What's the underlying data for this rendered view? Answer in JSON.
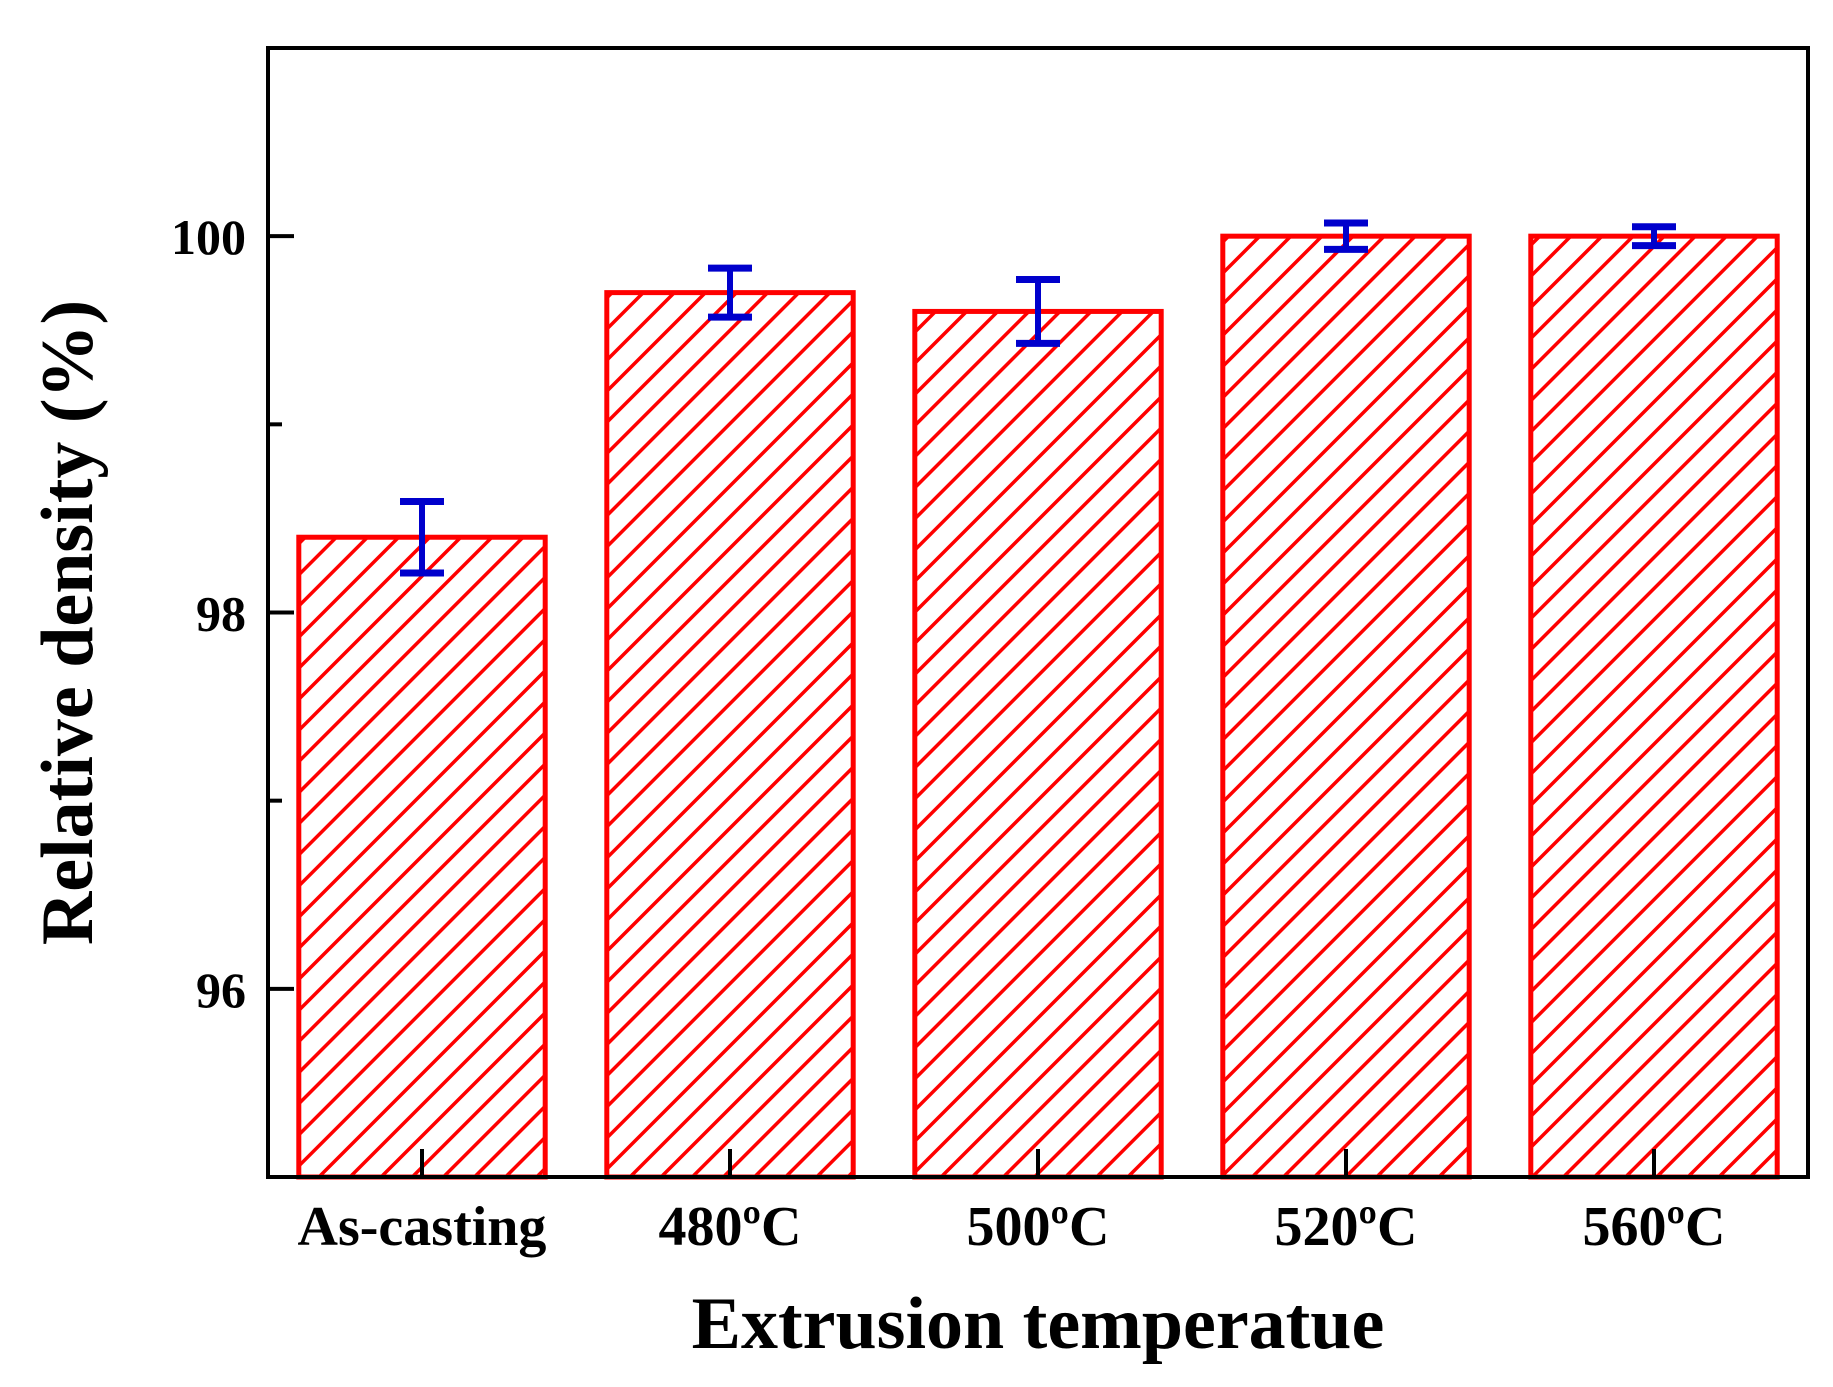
{
  "chart_data": {
    "type": "bar",
    "title": "",
    "xlabel": "Extrusion temperatue",
    "ylabel": "Relative density (%)",
    "categories": [
      "As-casting",
      "480ºC",
      "500ºC",
      "520ºC",
      "560ºC"
    ],
    "values": [
      98.4,
      99.7,
      99.6,
      100.0,
      100.0
    ],
    "errors": [
      0.19,
      0.13,
      0.17,
      0.07,
      0.05
    ],
    "ylim": [
      95.0,
      101.0
    ],
    "yticks": [
      96,
      98,
      100
    ],
    "yticks_minor": [
      97,
      99
    ],
    "ytick_labels": [
      "96",
      "98",
      "100"
    ],
    "grid": false,
    "legend": "none",
    "colors": {
      "bar_edge": "#ff0000",
      "bar_hatch": "#ff0000",
      "bar_fill": "#ffffff",
      "error_bar": "#0000cc",
      "axis": "#000000"
    }
  }
}
